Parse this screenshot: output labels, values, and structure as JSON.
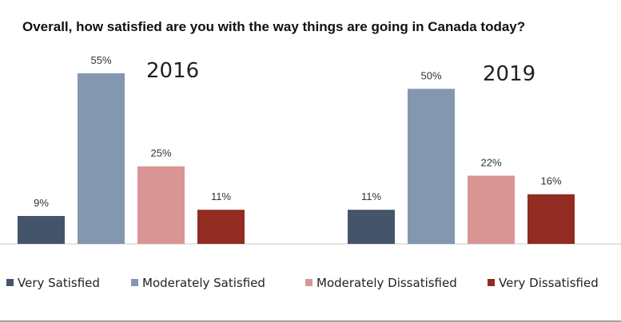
{
  "chart_data": {
    "type": "bar",
    "title": "Overall, how satisfied are you with the way things are going in Canada today?",
    "categories": [
      "Very Satisfied",
      "Moderately Satisfied",
      "Moderately Dissatisfied",
      "Very Dissatisfied"
    ],
    "unit": "%",
    "ylim": [
      0,
      60
    ],
    "grid": false,
    "legend_position": "bottom",
    "groups": [
      {
        "label": "2016",
        "values": [
          9,
          55,
          25,
          11
        ],
        "value_labels": [
          "9%",
          "55%",
          "25%",
          "11%"
        ]
      },
      {
        "label": "2019",
        "values": [
          11,
          50,
          22,
          16
        ],
        "value_labels": [
          "11%",
          "50%",
          "22%",
          "16%"
        ]
      }
    ],
    "colors": [
      "#44546a",
      "#8497b0",
      "#d99594",
      "#922b21"
    ]
  }
}
